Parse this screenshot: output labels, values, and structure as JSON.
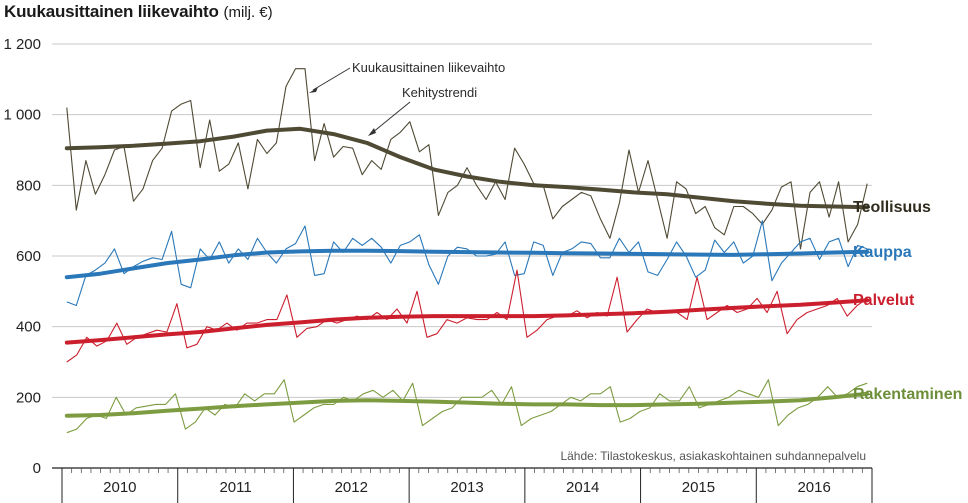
{
  "chart_data": {
    "type": "line",
    "title": "Kuukausittainen liikevaihto",
    "title_unit": "(milj. €)",
    "ylim": [
      0,
      1200
    ],
    "yticks": [
      0,
      200,
      400,
      600,
      800,
      1000,
      1200
    ],
    "ytick_labels": [
      "0",
      "200",
      "400",
      "600",
      "800",
      "1 000",
      "1 200"
    ],
    "xlim": [
      "2010-01",
      "2016-12"
    ],
    "year_labels": [
      "2010",
      "2011",
      "2012",
      "2013",
      "2014",
      "2015",
      "2016"
    ],
    "grid": true,
    "annotations": {
      "monthly": "Kuukausittainen liikevaihto",
      "trend": "Kehitystrendi"
    },
    "source": "Lähde: Tilastokeskus, asiakaskohtainen suhdannepalvelu",
    "series": [
      {
        "name": "Teollisuus",
        "color": "#4f4a34",
        "label_color": "#2f2c1e",
        "trend": [
          905,
          908,
          912,
          918,
          925,
          938,
          955,
          960,
          945,
          920,
          880,
          845,
          825,
          810,
          800,
          795,
          788,
          780,
          775,
          765,
          755,
          748,
          742,
          740,
          738
        ],
        "monthly": [
          1020,
          730,
          870,
          775,
          830,
          900,
          910,
          755,
          790,
          870,
          905,
          1010,
          1030,
          1040,
          850,
          985,
          840,
          860,
          920,
          790,
          930,
          890,
          920,
          1080,
          1130,
          1130,
          870,
          975,
          880,
          910,
          905,
          830,
          870,
          845,
          930,
          950,
          980,
          895,
          915,
          715,
          780,
          800,
          850,
          800,
          760,
          810,
          760,
          905,
          860,
          805,
          800,
          705,
          740,
          760,
          780,
          770,
          705,
          650,
          750,
          900,
          780,
          870,
          760,
          650,
          810,
          790,
          720,
          740,
          680,
          660,
          740,
          740,
          720,
          690,
          730,
          795,
          810,
          620,
          780,
          810,
          710,
          810,
          640,
          690,
          805
        ]
      },
      {
        "name": "Kauppa",
        "color": "#2a78b9",
        "label_color": "#2a78b9",
        "trend": [
          540,
          550,
          565,
          580,
          590,
          602,
          610,
          613,
          615,
          615,
          614,
          612,
          611,
          610,
          609,
          608,
          607,
          606,
          605,
          604,
          603,
          605,
          607,
          610,
          612
        ],
        "monthly": [
          470,
          460,
          545,
          560,
          580,
          620,
          550,
          570,
          585,
          595,
          590,
          670,
          520,
          510,
          620,
          590,
          640,
          580,
          620,
          590,
          650,
          610,
          580,
          620,
          635,
          685,
          545,
          550,
          640,
          610,
          650,
          630,
          650,
          625,
          580,
          630,
          640,
          660,
          575,
          520,
          600,
          625,
          620,
          600,
          600,
          605,
          640,
          545,
          550,
          640,
          630,
          545,
          610,
          620,
          640,
          635,
          595,
          595,
          650,
          610,
          640,
          555,
          545,
          590,
          640,
          600,
          540,
          560,
          645,
          610,
          640,
          580,
          600,
          700,
          530,
          580,
          610,
          640,
          650,
          590,
          640,
          650,
          570,
          630,
          620
        ]
      },
      {
        "name": "Palvelut",
        "color": "#cc1f2e",
        "label_color": "#cc1f2e",
        "trend": [
          355,
          362,
          370,
          378,
          385,
          395,
          405,
          412,
          420,
          425,
          428,
          430,
          430,
          430,
          430,
          432,
          435,
          438,
          442,
          448,
          453,
          458,
          462,
          468,
          475
        ],
        "monthly": [
          300,
          320,
          370,
          345,
          360,
          410,
          350,
          370,
          380,
          390,
          385,
          465,
          340,
          350,
          400,
          390,
          410,
          390,
          410,
          410,
          420,
          420,
          490,
          370,
          395,
          400,
          420,
          410,
          420,
          430,
          420,
          440,
          420,
          450,
          410,
          500,
          370,
          380,
          420,
          410,
          425,
          420,
          420,
          440,
          420,
          560,
          370,
          390,
          420,
          430,
          430,
          445,
          425,
          440,
          430,
          540,
          385,
          420,
          450,
          440,
          440,
          440,
          420,
          540,
          420,
          440,
          460,
          440,
          450,
          480,
          440,
          500,
          380,
          420,
          440,
          450,
          460,
          480,
          430,
          460,
          480
        ]
      },
      {
        "name": "Rakentaminen",
        "color": "#7d9c41",
        "label_color": "#6e8f3a",
        "trend": [
          148,
          150,
          155,
          162,
          168,
          175,
          180,
          185,
          190,
          192,
          190,
          188,
          185,
          182,
          180,
          180,
          178,
          178,
          180,
          182,
          185,
          188,
          192,
          200,
          210
        ],
        "monthly": [
          100,
          110,
          140,
          150,
          140,
          200,
          150,
          170,
          175,
          180,
          180,
          210,
          110,
          130,
          170,
          150,
          180,
          170,
          210,
          190,
          210,
          210,
          250,
          130,
          150,
          170,
          180,
          180,
          200,
          190,
          210,
          220,
          200,
          220,
          190,
          240,
          120,
          140,
          160,
          170,
          200,
          200,
          200,
          220,
          180,
          230,
          120,
          140,
          150,
          160,
          180,
          200,
          190,
          210,
          210,
          230,
          130,
          140,
          160,
          170,
          210,
          190,
          190,
          230,
          170,
          180,
          190,
          200,
          220,
          210,
          200,
          250,
          120,
          150,
          170,
          180,
          200,
          230,
          200,
          210,
          230,
          240
        ]
      }
    ]
  }
}
